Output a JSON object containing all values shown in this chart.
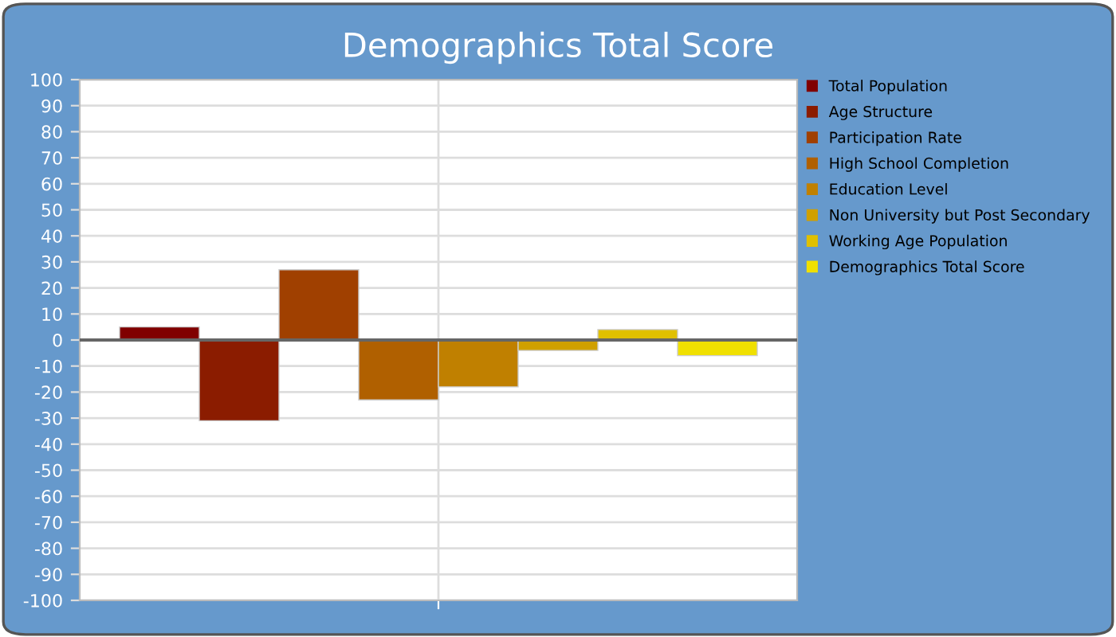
{
  "chart_data": {
    "type": "bar",
    "title": "Demographics Total Score",
    "categories": [
      null
    ],
    "series": [
      {
        "name": "Total Population",
        "color": "#800000",
        "values": [
          5
        ]
      },
      {
        "name": "Age Structure",
        "color": "#8b1c00",
        "values": [
          -31
        ]
      },
      {
        "name": "Participation Rate",
        "color": "#a04000",
        "values": [
          27
        ]
      },
      {
        "name": "High School Completion",
        "color": "#b06000",
        "values": [
          -23
        ]
      },
      {
        "name": "Education Level",
        "color": "#c08000",
        "values": [
          -18
        ]
      },
      {
        "name": "Non University but Post Secondary",
        "color": "#d0a000",
        "values": [
          -4
        ]
      },
      {
        "name": "Working Age Population",
        "color": "#e0c000",
        "values": [
          4
        ]
      },
      {
        "name": "Demographics Total Score",
        "color": "#f0e000",
        "values": [
          -6
        ]
      }
    ],
    "ylim": [
      -100,
      100
    ],
    "yticks": [
      -100,
      -90,
      -80,
      -70,
      -60,
      -50,
      -40,
      -30,
      -20,
      -10,
      0,
      10,
      20,
      30,
      40,
      50,
      60,
      70,
      80,
      90,
      100
    ],
    "grid": true,
    "legend": "right"
  }
}
